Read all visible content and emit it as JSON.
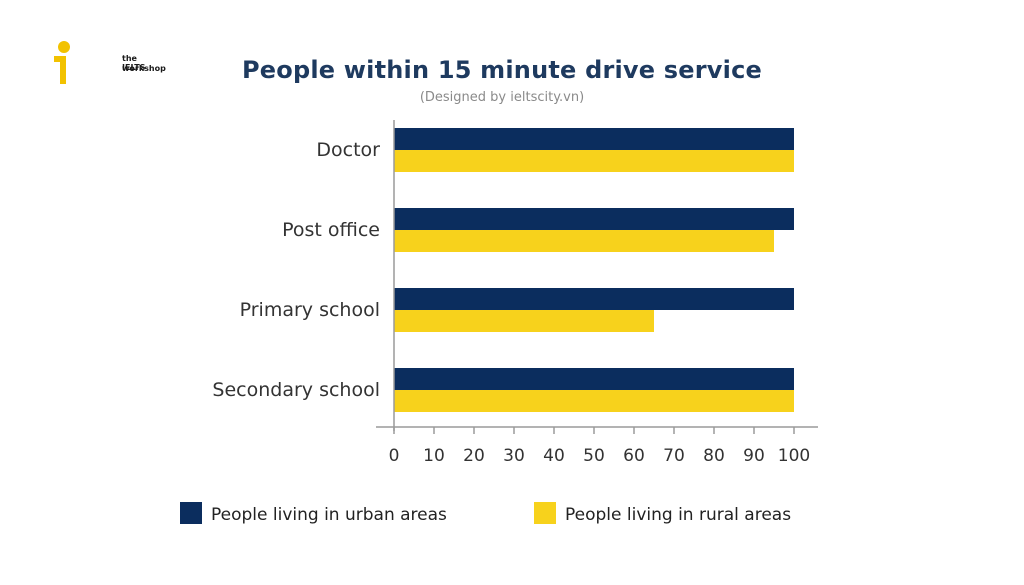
{
  "logo": {
    "line1": "the IELTS",
    "line2": "workshop",
    "accent": "#f2c200"
  },
  "chart_data": {
    "type": "bar",
    "orientation": "horizontal",
    "title": "People within 15 minute drive service",
    "subtitle": "(Designed by ieltscity.vn)",
    "categories": [
      "Doctor",
      "Post office",
      "Primary school",
      "Secondary school"
    ],
    "series": [
      {
        "name": "People living in urban areas",
        "color": "#0b2d5e",
        "values": [
          100,
          100,
          100,
          100
        ]
      },
      {
        "name": "People living in rural areas",
        "color": "#f7d21c",
        "values": [
          100,
          95,
          65,
          100
        ]
      }
    ],
    "xlim": [
      0,
      100
    ],
    "xticks": [
      0,
      10,
      20,
      30,
      40,
      50,
      60,
      70,
      80,
      90,
      100
    ],
    "grid": false,
    "legend_position": "bottom"
  }
}
